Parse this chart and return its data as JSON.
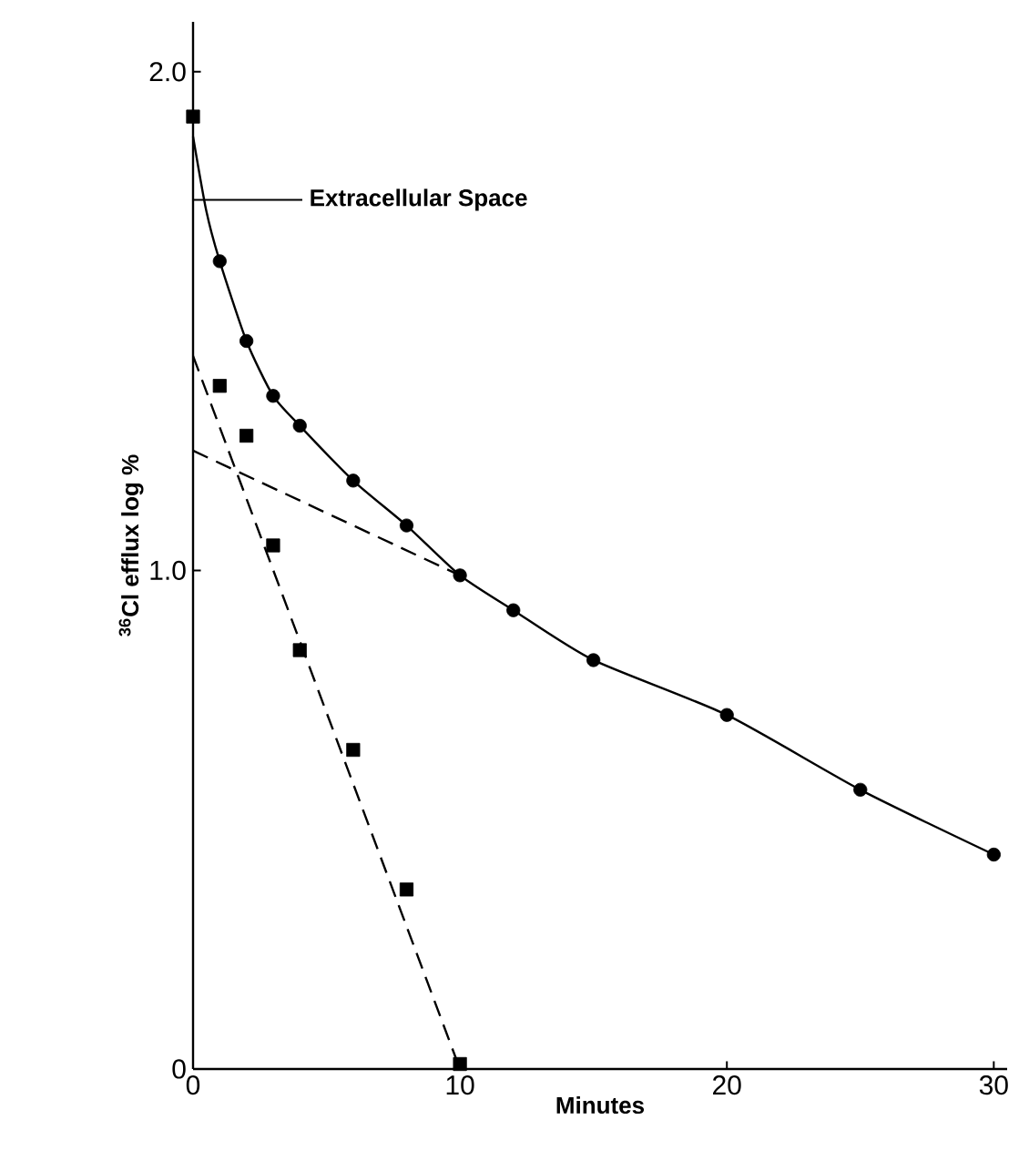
{
  "chart_data": {
    "type": "scatter",
    "xlabel": "Minutes",
    "ylabel": "$^{36}$Cl efflux log %",
    "xlim": [
      0,
      30.5
    ],
    "ylim": [
      0,
      2.1
    ],
    "xticks": [
      0,
      10,
      20,
      30
    ],
    "yticks": [
      0,
      {
        "value": 1,
        "label": "1.0"
      },
      {
        "value": 2,
        "label": "2.0"
      }
    ],
    "annotations": [
      "Extracellular Space"
    ],
    "series": [
      {
        "marker": "circle",
        "color": "#000000",
        "x": [
          1,
          2,
          3,
          4,
          6,
          8,
          10,
          12,
          15,
          20,
          25,
          30
        ],
        "values": [
          1.62,
          1.46,
          1.35,
          1.29,
          1.18,
          1.09,
          0.99,
          0.92,
          0.82,
          0.71,
          0.56,
          0.43
        ]
      },
      {
        "marker": "square",
        "color": "#000000",
        "x": [
          0,
          1,
          2,
          3,
          4,
          6,
          8,
          10
        ],
        "values": [
          1.91,
          1.37,
          1.27,
          1.05,
          0.84,
          0.64,
          0.36,
          0.01
        ]
      },
      {
        "type": "line",
        "line_style": "solid",
        "color": "#000000",
        "x": [
          0,
          0.5,
          1,
          2,
          3,
          4,
          6,
          8,
          10,
          12,
          15,
          20,
          25,
          30
        ],
        "values": [
          1.87,
          1.72,
          1.62,
          1.46,
          1.35,
          1.29,
          1.18,
          1.09,
          0.99,
          0.92,
          0.82,
          0.71,
          0.56,
          0.43
        ]
      },
      {
        "type": "line",
        "line_style": "dashed",
        "color": "#000000",
        "x": [
          0,
          10
        ],
        "values": [
          1.24,
          0.99
        ]
      },
      {
        "type": "line",
        "line_style": "dashed",
        "color": "#000000",
        "x": [
          0,
          10
        ],
        "values": [
          1.43,
          0
        ]
      }
    ]
  }
}
